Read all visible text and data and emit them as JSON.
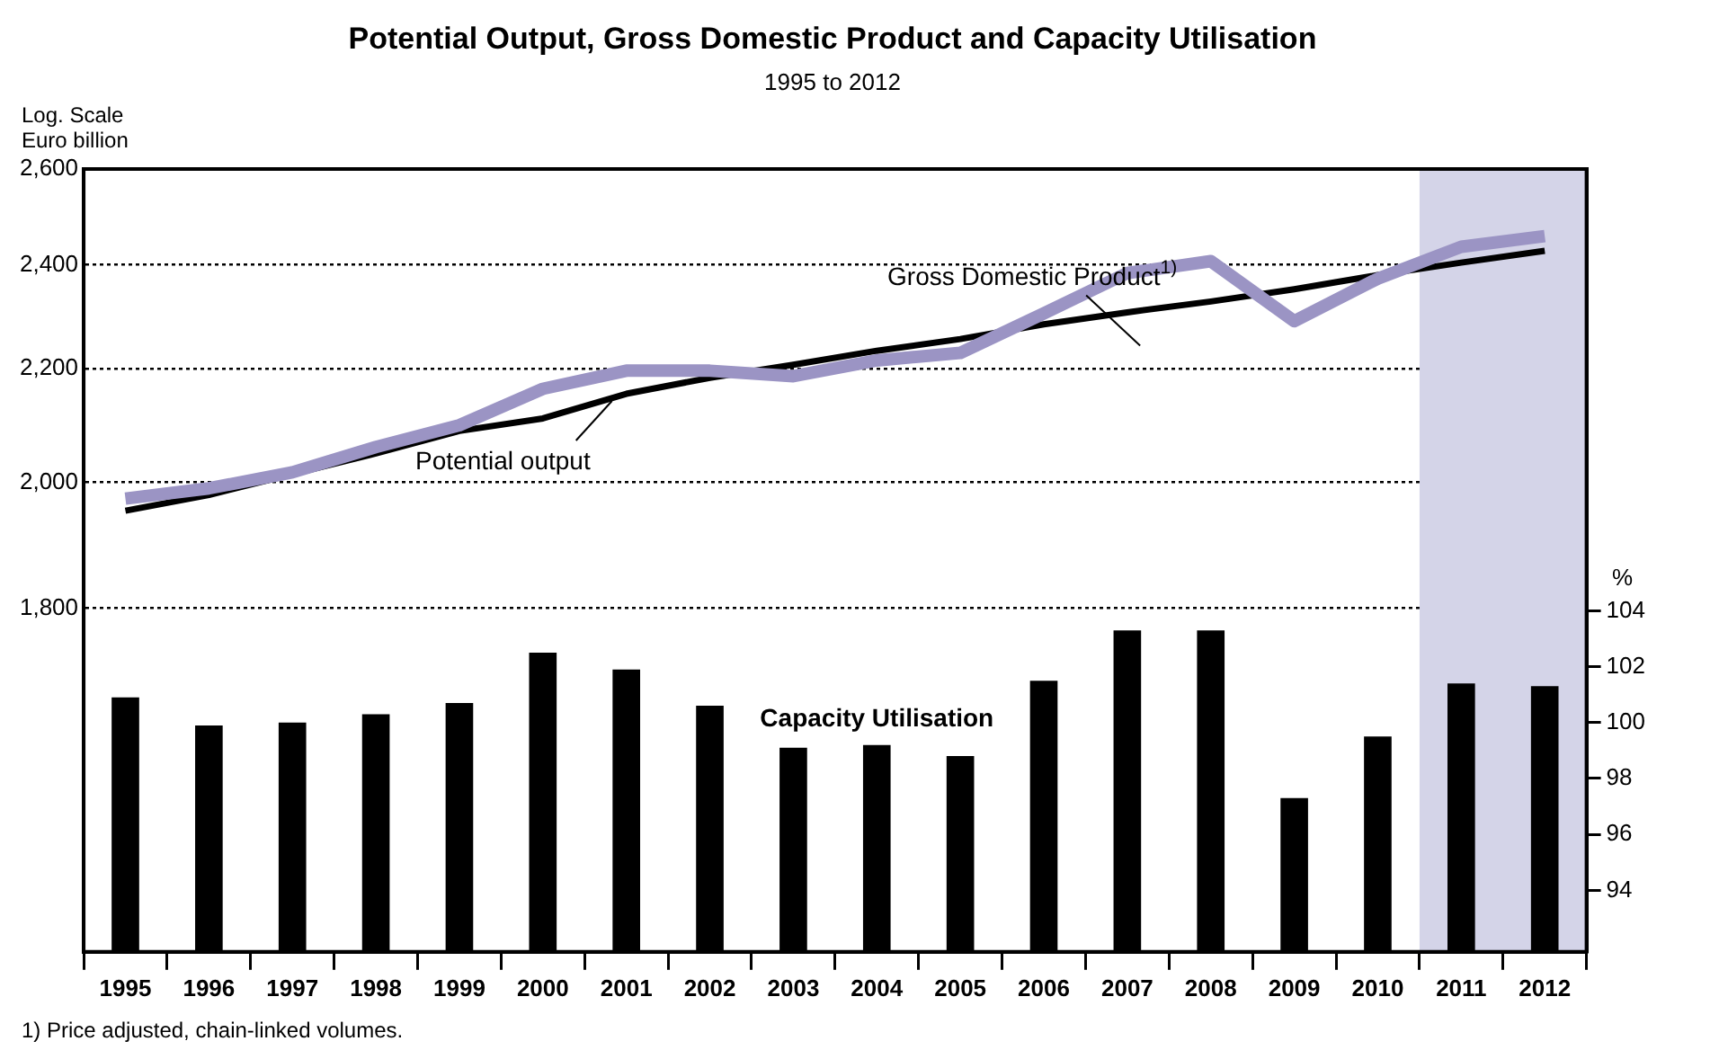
{
  "chart_data": {
    "type": "line",
    "title": "Potential Output, Gross Domestic Product and Capacity Utilisation",
    "subtitle": "1995 to 2012",
    "ylabel": "Euro billion",
    "y2label": "%",
    "annotations": [
      "Log. Scale",
      "1) Price adjusted, chain-linked volumes."
    ],
    "categories": [
      "1995",
      "1996",
      "1997",
      "1998",
      "1999",
      "2000",
      "2001",
      "2002",
      "2003",
      "2004",
      "2005",
      "2006",
      "2007",
      "2008",
      "2009",
      "2010",
      "2011",
      "2012"
    ],
    "series": [
      {
        "name": "Capacity Utilisation",
        "type": "bar",
        "axis": "y2",
        "color": "#000000",
        "values": [
          100.9,
          99.9,
          100.0,
          100.3,
          100.7,
          102.5,
          101.9,
          100.6,
          99.1,
          99.2,
          98.8,
          101.5,
          103.3,
          103.3,
          97.3,
          99.5,
          101.4,
          101.3
        ]
      },
      {
        "name": "Gross Domestic Product$^{1)}$",
        "type": "line",
        "color": "#9b94c4",
        "values": [
          1973,
          1990,
          2017,
          2060,
          2098,
          2163,
          2196,
          2196,
          2186,
          2215,
          2229,
          2304,
          2383,
          2407,
          2289,
          2372,
          2436,
          2458
        ]
      },
      {
        "name": "Potential output",
        "type": "line",
        "color": "#000000",
        "values": [
          1953,
          1979,
          2014,
          2049,
          2088,
          2110,
          2154,
          2183,
          2207,
          2233,
          2255,
          2283,
          2306,
          2327,
          2351,
          2379,
          2404,
          2428
        ]
      }
    ],
    "ylim": [
      1350,
      2600
    ],
    "yticks": [
      {
        "value": 1800,
        "label": "1,800"
      },
      {
        "value": 2000,
        "label": "2,000"
      },
      {
        "value": 2200,
        "label": "2,200"
      },
      {
        "value": 2400,
        "label": "2,400"
      },
      {
        "value": 2600,
        "label": "2,600"
      }
    ],
    "log": true,
    "grid": "y",
    "y2lim": [
      91.8,
      119.8
    ],
    "y2ticks": [
      94,
      96,
      98,
      100,
      102,
      104
    ],
    "bands": [
      {
        "axis": "x",
        "from": "2011",
        "to": "2012",
        "color": "#d4d4e8"
      }
    ]
  }
}
